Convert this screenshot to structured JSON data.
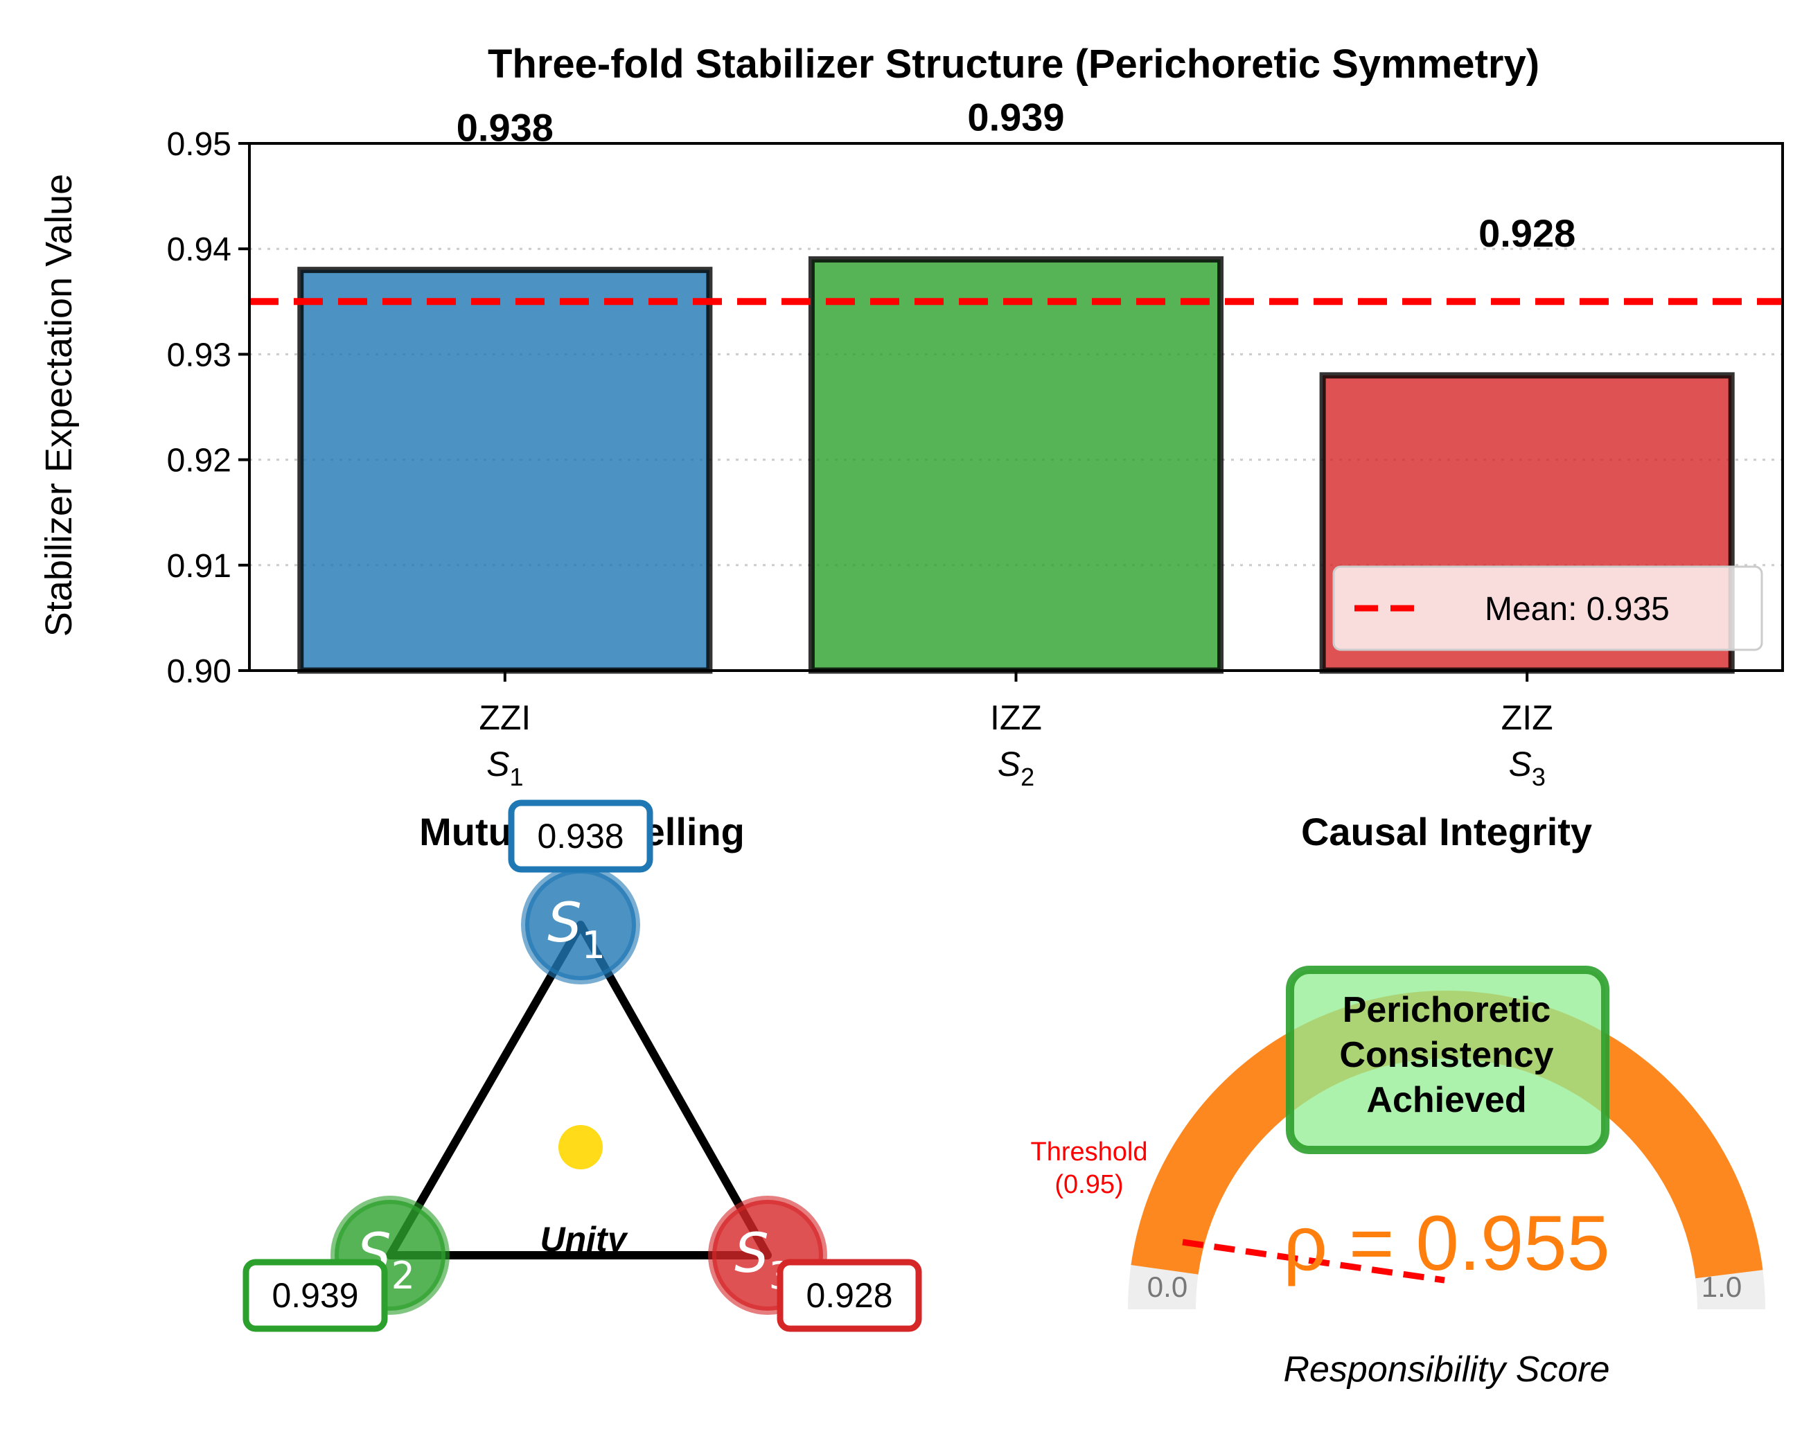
{
  "chart_data": [
    {
      "type": "bar",
      "title": "Three-fold Stabilizer Structure (Perichoretic Symmetry)",
      "ylabel": "Stabilizer Expectation Value",
      "xlabel": "",
      "ylim": [
        0.9,
        0.95
      ],
      "yticks": [
        "0.90",
        "0.91",
        "0.92",
        "0.93",
        "0.94",
        "0.95"
      ],
      "ytick_values": [
        0.9,
        0.91,
        0.92,
        0.93,
        0.94,
        0.95
      ],
      "categories": [
        "ZZI",
        "IZZ",
        "ZIZ"
      ],
      "category_subscripts": [
        "1",
        "2",
        "3"
      ],
      "category_symbol": "S",
      "values": [
        0.938,
        0.939,
        0.928
      ],
      "value_labels": [
        "0.938",
        "0.939",
        "0.928"
      ],
      "colors": [
        "#1f77b4",
        "#2ca02c",
        "#d62728"
      ],
      "grid": "horizontal dotted",
      "mean": {
        "value": 0.935,
        "label": "Mean: 0.935",
        "color": "#ff0000",
        "style": "dashed"
      },
      "legend_position": "lower-right"
    },
    {
      "type": "diagram",
      "title": "Mutual Indwelling",
      "nodes": [
        {
          "symbol": "S",
          "sub": "1",
          "value": "0.938",
          "color": "#1f77b4"
        },
        {
          "symbol": "S",
          "sub": "2",
          "value": "0.939",
          "color": "#2ca02c"
        },
        {
          "symbol": "S",
          "sub": "3",
          "value": "0.928",
          "color": "#d62728"
        }
      ],
      "center_label": "Unity",
      "center_color": "#ffd700"
    },
    {
      "type": "gauge",
      "title": "Causal Integrity",
      "value": 0.955,
      "value_label": "ρ = 0.955",
      "range": [
        0.0,
        1.0
      ],
      "min_label": "0.0",
      "max_label": "1.0",
      "threshold": 0.95,
      "threshold_label_1": "Threshold",
      "threshold_label_2": "(0.95)",
      "badge_lines": [
        "Perichoretic",
        "Consistency",
        "Achieved"
      ],
      "xlabel": "Responsibility Score",
      "fill_color": "#ff7f0e",
      "badge_fill": "#90ee90",
      "badge_border": "#2ca02c"
    }
  ]
}
